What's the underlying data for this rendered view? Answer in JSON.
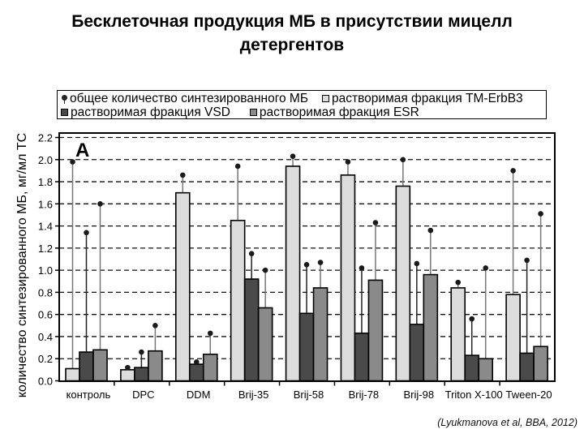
{
  "slide": {
    "title_line1": "Бесклеточная продукция МБ в присутствии мицелл",
    "title_line2": "детергентов",
    "citation": "(Lyukmanova et al, BBA, 2012)"
  },
  "legend": {
    "items": [
      {
        "label": "общее количество синтезированного МБ",
        "icon": "pin-marker-icon",
        "color": "#222222"
      },
      {
        "label": "растворимая фракция TM-ErbB3",
        "icon": "square-swatch-icon",
        "color": "#dcdcdc"
      },
      {
        "label": "растворимая фракция VSD",
        "icon": "square-swatch-icon",
        "color": "#4a4a4a"
      },
      {
        "label": "растворимая фракция ESR",
        "icon": "square-swatch-icon",
        "color": "#8a8a8a"
      }
    ]
  },
  "chart_data": {
    "type": "bar",
    "title": "Бесклеточная продукция МБ в присутствии мицелл детергентов",
    "panel_label": "A",
    "xlabel": "",
    "ylabel": "количество синтезированного МБ, мг/мл ТС",
    "ylim": [
      0,
      2.2
    ],
    "yticks": [
      "0.0",
      "0.2",
      "0.4",
      "0.6",
      "0.8",
      "1.0",
      "1.2",
      "1.4",
      "1.6",
      "1.8",
      "2.0",
      "2.2"
    ],
    "grid": "horizontal dashed",
    "legend_position": "top",
    "categories": [
      "контроль",
      "DPC",
      "DDM",
      "Brij-35",
      "Brij-58",
      "Brij-78",
      "Brij-98",
      "Triton X-100",
      "Tween-20"
    ],
    "series": [
      {
        "name": "растворимая фракция TM-ErbB3",
        "color": "#dcdcdc",
        "values": [
          0.11,
          0.1,
          1.7,
          1.45,
          1.94,
          1.86,
          1.76,
          0.84,
          0.78
        ],
        "total": [
          1.98,
          0.12,
          1.86,
          1.94,
          2.03,
          1.98,
          2.0,
          0.89,
          1.9
        ]
      },
      {
        "name": "растворимая фракция VSD",
        "color": "#4a4a4a",
        "values": [
          0.26,
          0.12,
          0.15,
          0.92,
          0.61,
          0.43,
          0.51,
          0.23,
          0.25
        ],
        "total": [
          1.34,
          0.26,
          0.17,
          1.15,
          1.05,
          1.02,
          1.06,
          0.56,
          1.09
        ]
      },
      {
        "name": "растворимая фракция ESR",
        "color": "#8a8a8a",
        "values": [
          0.28,
          0.27,
          0.24,
          0.66,
          0.84,
          0.91,
          0.96,
          0.2,
          0.31
        ],
        "total": [
          1.6,
          0.5,
          0.43,
          1.0,
          1.07,
          1.43,
          1.36,
          1.02,
          1.51
        ]
      }
    ],
    "total_series_name": "общее количество синтезированного МБ"
  }
}
